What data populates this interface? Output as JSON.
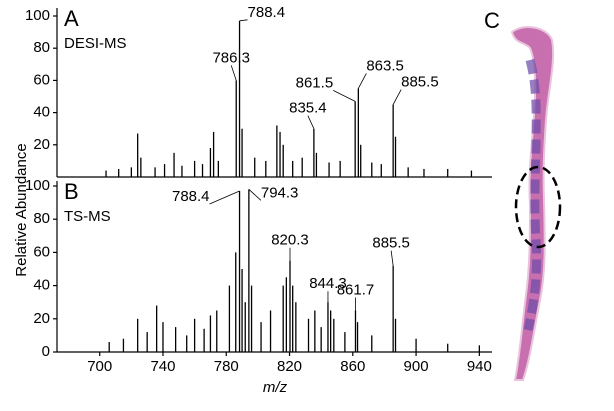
{
  "chart_data": [
    {
      "type": "spectrum",
      "panel_label": "A",
      "title": "DESI-MS",
      "ylabel": "Relative Abundance",
      "color": "#000000",
      "xlim": [
        673,
        948
      ],
      "ylim": [
        0,
        100
      ],
      "yticks": [
        20,
        40,
        60,
        80,
        100
      ],
      "x": [
        704,
        712,
        720,
        724,
        726,
        735,
        741,
        747,
        752,
        760,
        765,
        770,
        772,
        775,
        786.3,
        788.4,
        790,
        798,
        805,
        812,
        814,
        816,
        822,
        828,
        835.4,
        837,
        845,
        852,
        861.5,
        863.5,
        865,
        872,
        878,
        885.5,
        887,
        895,
        905,
        920,
        935
      ],
      "values": [
        4,
        5,
        6,
        27,
        12,
        6,
        8,
        15,
        7,
        10,
        8,
        18,
        28,
        10,
        60,
        97,
        30,
        12,
        10,
        32,
        28,
        20,
        10,
        12,
        30,
        15,
        9,
        10,
        47,
        55,
        20,
        9,
        8,
        45,
        25,
        6,
        5,
        5,
        4
      ],
      "annotations": [
        {
          "label": "786.3",
          "x": 786.3,
          "y": 60
        },
        {
          "label": "788.4",
          "x": 788.4,
          "y": 97
        },
        {
          "label": "835.4",
          "x": 835.4,
          "y": 30
        },
        {
          "label": "861.5",
          "x": 861.5,
          "y": 47
        },
        {
          "label": "863.5",
          "x": 863.5,
          "y": 55
        },
        {
          "label": "885.5",
          "x": 885.5,
          "y": 45
        }
      ]
    },
    {
      "type": "spectrum",
      "panel_label": "B",
      "title": "TS-MS",
      "xlabel": "m/z",
      "color": "#000000",
      "xlim": [
        673,
        948
      ],
      "ylim": [
        0,
        100
      ],
      "yticks": [
        0,
        20,
        40,
        60,
        80,
        100
      ],
      "xticks": [
        700,
        740,
        780,
        820,
        860,
        900,
        940
      ],
      "x": [
        706,
        715,
        724,
        730,
        736,
        740,
        748,
        755,
        760,
        766,
        770,
        774,
        782,
        786,
        788.4,
        790,
        792,
        794.3,
        796,
        802,
        808,
        816,
        818,
        820.3,
        822,
        824,
        832,
        836,
        840,
        844.3,
        846,
        848,
        855,
        861.7,
        863,
        872,
        885.5,
        887,
        900,
        920,
        940
      ],
      "values": [
        6,
        8,
        20,
        12,
        28,
        18,
        15,
        10,
        20,
        14,
        22,
        25,
        40,
        60,
        97,
        50,
        30,
        98,
        40,
        18,
        25,
        40,
        45,
        55,
        40,
        30,
        20,
        25,
        15,
        30,
        25,
        20,
        12,
        25,
        18,
        10,
        52,
        20,
        8,
        5,
        4
      ],
      "annotations": [
        {
          "label": "788.4",
          "x": 788.4,
          "y": 97
        },
        {
          "label": "794.3",
          "x": 794.3,
          "y": 98
        },
        {
          "label": "820.3",
          "x": 820.3,
          "y": 55
        },
        {
          "label": "844.3",
          "x": 844.3,
          "y": 30
        },
        {
          "label": "861.7",
          "x": 861.7,
          "y": 25
        },
        {
          "label": "885.5",
          "x": 885.5,
          "y": 52
        }
      ]
    }
  ],
  "image_panel": {
    "label": "C"
  }
}
